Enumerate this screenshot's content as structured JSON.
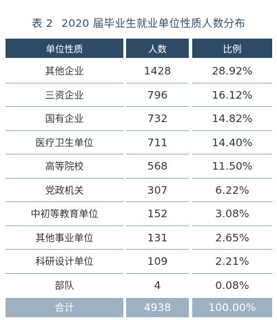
{
  "title": {
    "label": "表 2",
    "text": "2020 届毕业生就业单位性质人数分布"
  },
  "columns": [
    "单位性质",
    "人数",
    "比例"
  ],
  "rows": [
    [
      "其他企业",
      "1428",
      "28.92%"
    ],
    [
      "三资企业",
      "796",
      "16.12%"
    ],
    [
      "国有企业",
      "732",
      "14.82%"
    ],
    [
      "医疗卫生单位",
      "711",
      "14.40%"
    ],
    [
      "高等院校",
      "568",
      "11.50%"
    ],
    [
      "党政机关",
      "307",
      "6.22%"
    ],
    [
      "中初等教育单位",
      "152",
      "3.08%"
    ],
    [
      "其他事业单位",
      "131",
      "2.65%"
    ],
    [
      "科研设计单位",
      "109",
      "2.21%"
    ],
    [
      "部队",
      "4",
      "0.08%"
    ]
  ],
  "total": [
    "合计",
    "4938",
    "100.00%"
  ],
  "colors": {
    "title": "#2f4f6f",
    "header_bg": "#2e4a66",
    "total_bg": "#9eb1c2",
    "rule": "#8fa8bd"
  }
}
